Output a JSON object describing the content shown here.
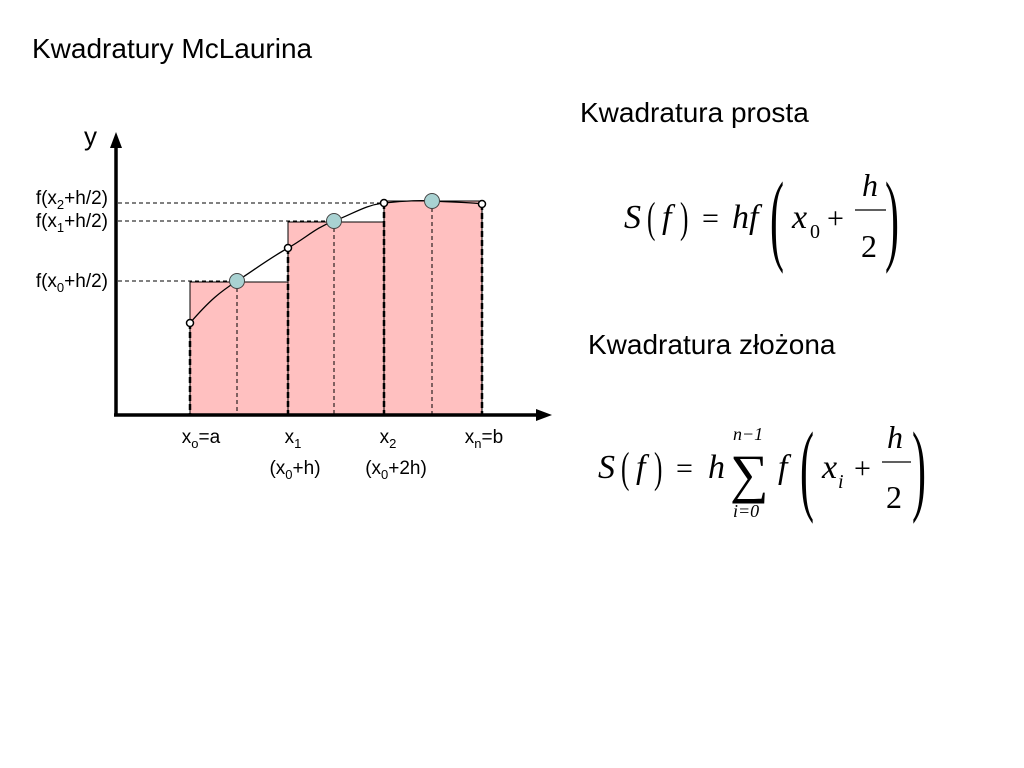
{
  "title": "Kwadratury McLaurina",
  "diagram": {
    "axis_y": "y",
    "y_labels": [
      [
        "f(x",
        "2",
        "+h/2)"
      ],
      [
        "f(x",
        "1",
        "+h/2)"
      ],
      [
        "f(x",
        "0",
        "+h/2)"
      ]
    ],
    "x_labels": [
      [
        "x",
        "o",
        "=a"
      ],
      [
        "x",
        "1"
      ],
      [
        "x",
        "2"
      ],
      [
        "x",
        "n",
        "=b"
      ]
    ],
    "x_sublabels": [
      [
        "(x",
        "0",
        "+h)"
      ],
      [
        "(x",
        "0",
        "+2h)"
      ]
    ]
  },
  "simple": {
    "heading": "Kwadratura prosta",
    "formula": [
      "S",
      "(",
      "f",
      ")",
      "=",
      "hf",
      "(",
      "x",
      "0",
      "+",
      "h",
      "2",
      ")"
    ]
  },
  "composite": {
    "heading": "Kwadratura złożona",
    "formula": [
      "S",
      "(",
      "f",
      ")",
      "=",
      "h",
      "∑",
      "n−1",
      "i=0",
      "f",
      "(",
      "x",
      "i",
      "+",
      "h",
      "2",
      ")"
    ]
  }
}
